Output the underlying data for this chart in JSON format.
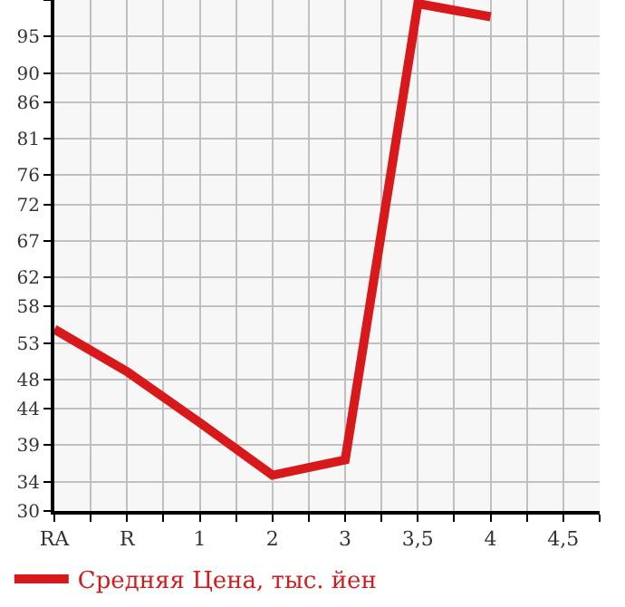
{
  "chart_data": {
    "type": "line",
    "categories": [
      "RA",
      "R",
      "1",
      "2",
      "3",
      "3,5",
      "4",
      "4,5"
    ],
    "series": [
      {
        "name": "Средняя Цена, тыс. йен",
        "color": "#d7191c",
        "values": [
          54.9,
          49.1,
          42.1,
          34.9,
          37,
          99.5,
          97.7,
          null
        ]
      }
    ],
    "ylim": [
      30,
      100
    ],
    "yticks": [
      30,
      34,
      39,
      44,
      48,
      53,
      58,
      62,
      67,
      72,
      76,
      81,
      86,
      90,
      95,
      {
        "value": 100,
        "label": null
      }
    ],
    "grid": true,
    "legend": "bottom",
    "marker": "none",
    "line_style": "solid"
  }
}
